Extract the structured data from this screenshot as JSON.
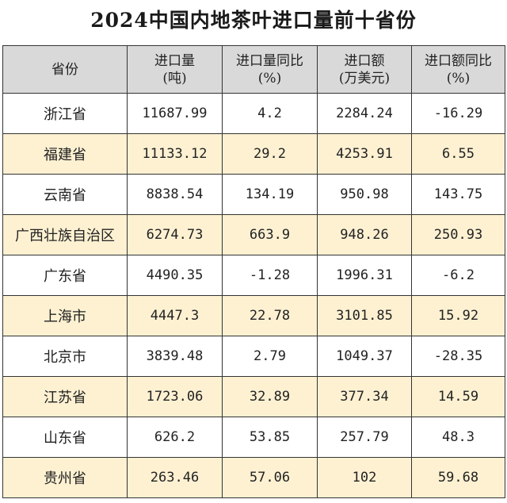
{
  "title": "2024中国内地茶叶进口量前十省份",
  "headers": [
    {
      "line1": "省份",
      "line2": ""
    },
    {
      "line1": "进口量",
      "line2": "(吨)"
    },
    {
      "line1": "进口量同比",
      "line2": "(%)"
    },
    {
      "line1": "进口额",
      "line2": "(万美元)"
    },
    {
      "line1": "进口额同比",
      "line2": "(%)"
    }
  ],
  "rows": [
    [
      "浙江省",
      "11687.99",
      "4.2",
      "2284.24",
      "-16.29"
    ],
    [
      "福建省",
      "11133.12",
      "29.2",
      "4253.91",
      "6.55"
    ],
    [
      "云南省",
      "8838.54",
      "134.19",
      "950.98",
      "143.75"
    ],
    [
      "广西壮族自治区",
      "6274.73",
      "663.9",
      "948.26",
      "250.93"
    ],
    [
      "广东省",
      "4490.35",
      "-1.28",
      "1996.31",
      "-6.2"
    ],
    [
      "上海市",
      "4447.3",
      "22.78",
      "3101.85",
      "15.92"
    ],
    [
      "北京市",
      "3839.48",
      "2.79",
      "1049.37",
      "-28.35"
    ],
    [
      "江苏省",
      "1723.06",
      "32.89",
      "377.34",
      "14.59"
    ],
    [
      "山东省",
      "626.2",
      "53.85",
      "257.79",
      "48.3"
    ],
    [
      "贵州省",
      "263.46",
      "57.06",
      "102",
      "59.68"
    ]
  ],
  "colors": {
    "header_bg": "#d9d9d9",
    "stripe_bg": "#fdf1d2",
    "row_bg": "#ffffff",
    "border": "#333333"
  }
}
